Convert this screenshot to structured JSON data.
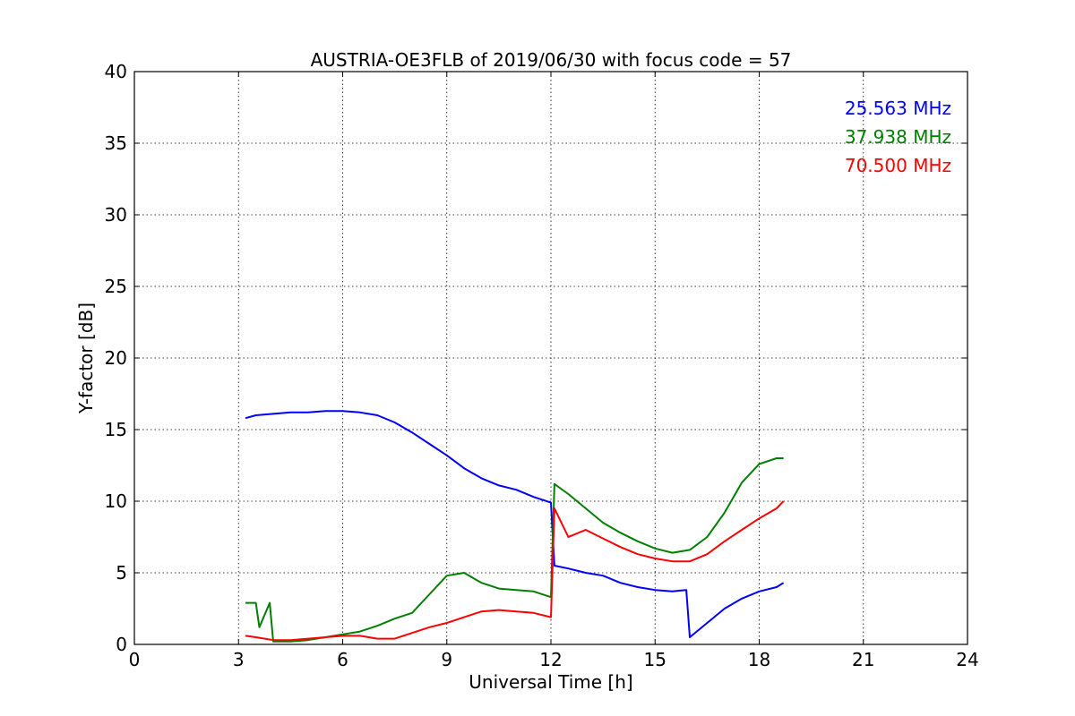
{
  "chart_data": {
    "type": "line",
    "title": "AUSTRIA-OE3FLB of 2019/06/30 with focus code = 57",
    "xlabel": "Universal Time [h]",
    "ylabel": "Y-factor [dB]",
    "xlim": [
      0,
      24
    ],
    "ylim": [
      0,
      40
    ],
    "xticks": [
      0,
      3,
      6,
      9,
      12,
      15,
      18,
      21,
      24
    ],
    "yticks": [
      0,
      5,
      10,
      15,
      20,
      25,
      30,
      35,
      40
    ],
    "grid": true,
    "legend_position": "top-right",
    "series": [
      {
        "name": "25.563 MHz",
        "color": "#0000ff",
        "x": [
          3.2,
          3.5,
          4.0,
          4.5,
          5.0,
          5.5,
          6.0,
          6.5,
          7.0,
          7.5,
          8.0,
          8.5,
          9.0,
          9.5,
          10.0,
          10.5,
          11.0,
          11.5,
          12.0,
          12.1,
          12.5,
          13.0,
          13.5,
          14.0,
          14.5,
          15.0,
          15.5,
          15.9,
          16.0,
          16.5,
          17.0,
          17.5,
          18.0,
          18.5,
          18.7
        ],
        "values": [
          15.8,
          16.0,
          16.1,
          16.2,
          16.2,
          16.3,
          16.3,
          16.2,
          16.0,
          15.5,
          14.8,
          14.0,
          13.2,
          12.3,
          11.6,
          11.1,
          10.8,
          10.3,
          9.9,
          5.5,
          5.3,
          5.0,
          4.8,
          4.3,
          4.0,
          3.8,
          3.7,
          3.8,
          0.5,
          1.5,
          2.5,
          3.2,
          3.7,
          4.0,
          4.3
        ]
      },
      {
        "name": "37.938 MHz",
        "color": "#008000",
        "x": [
          3.2,
          3.5,
          3.6,
          3.9,
          4.0,
          4.5,
          5.0,
          5.5,
          6.0,
          6.5,
          7.0,
          7.5,
          8.0,
          8.5,
          9.0,
          9.5,
          10.0,
          10.5,
          11.0,
          11.5,
          12.0,
          12.1,
          12.5,
          13.0,
          13.5,
          14.0,
          14.5,
          15.0,
          15.5,
          16.0,
          16.5,
          17.0,
          17.5,
          18.0,
          18.5,
          18.7
        ],
        "values": [
          2.9,
          2.9,
          1.2,
          2.9,
          0.2,
          0.2,
          0.3,
          0.5,
          0.7,
          0.9,
          1.3,
          1.8,
          2.2,
          3.5,
          4.8,
          5.0,
          4.3,
          3.9,
          3.8,
          3.7,
          3.3,
          11.2,
          10.5,
          9.5,
          8.5,
          7.8,
          7.2,
          6.7,
          6.4,
          6.6,
          7.5,
          9.2,
          11.3,
          12.6,
          13.0,
          13.0
        ]
      },
      {
        "name": "70.500 MHz",
        "color": "#ff0000",
        "x": [
          3.2,
          3.5,
          4.0,
          4.5,
          5.0,
          5.5,
          6.0,
          6.5,
          7.0,
          7.5,
          8.0,
          8.5,
          9.0,
          9.5,
          10.0,
          10.5,
          11.0,
          11.5,
          12.0,
          12.1,
          12.5,
          13.0,
          13.5,
          14.0,
          14.5,
          15.0,
          15.5,
          16.0,
          16.5,
          17.0,
          17.5,
          18.0,
          18.5,
          18.7
        ],
        "values": [
          0.6,
          0.5,
          0.3,
          0.3,
          0.4,
          0.5,
          0.6,
          0.6,
          0.4,
          0.4,
          0.8,
          1.2,
          1.5,
          1.9,
          2.3,
          2.4,
          2.3,
          2.2,
          1.9,
          9.5,
          7.5,
          8.0,
          7.4,
          6.8,
          6.3,
          6.0,
          5.8,
          5.8,
          6.3,
          7.2,
          8.0,
          8.8,
          9.5,
          10.0
        ]
      }
    ]
  }
}
